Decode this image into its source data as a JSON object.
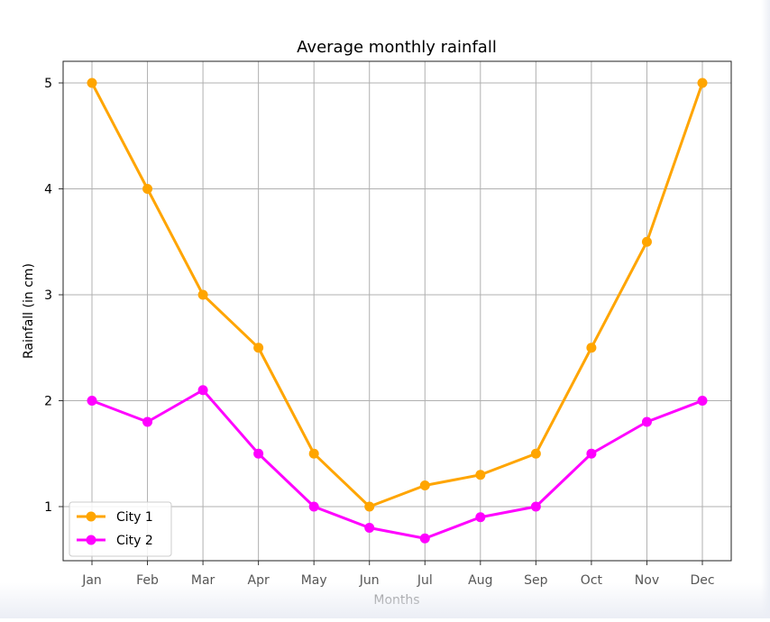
{
  "chart_data": {
    "type": "line",
    "title": "Average monthly rainfall",
    "xlabel": "Months",
    "ylabel": "Rainfall (in cm)",
    "categories": [
      "Jan",
      "Feb",
      "Mar",
      "Apr",
      "May",
      "Jun",
      "Jul",
      "Aug",
      "Sep",
      "Oct",
      "Nov",
      "Dec"
    ],
    "yticks": [
      "1",
      "2",
      "3",
      "4",
      "5"
    ],
    "ylim": [
      0.5,
      5.2
    ],
    "grid": true,
    "legend_position": "lower-left",
    "series": [
      {
        "name": "City 1",
        "color": "#ffa500",
        "values": [
          5,
          4,
          3,
          2.5,
          1.5,
          1,
          1.2,
          1.3,
          1.5,
          2.5,
          3.5,
          5
        ]
      },
      {
        "name": "City 2",
        "color": "#ff00ff",
        "values": [
          2,
          1.8,
          2.1,
          1.5,
          1,
          0.8,
          0.7,
          0.9,
          1,
          1.5,
          1.8,
          2
        ]
      }
    ]
  }
}
